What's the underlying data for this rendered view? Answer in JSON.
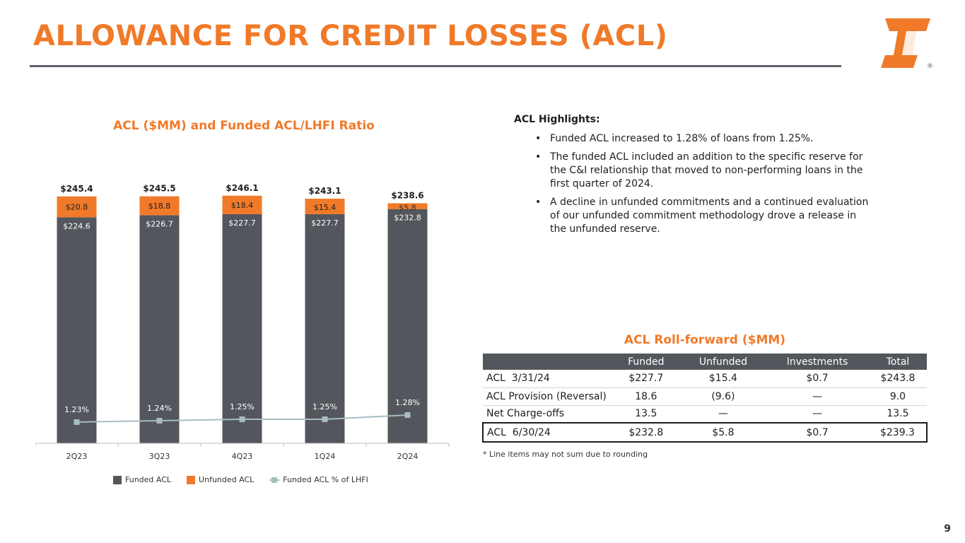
{
  "page": {
    "title": "ALLOWANCE FOR CREDIT LOSSES (ACL)",
    "page_number": "9",
    "logo_registered_mark": "®"
  },
  "colors": {
    "accent_orange": "#f07a29",
    "funded_bar": "#54565d",
    "unfunded_bar": "#f07a29",
    "ratio_line": "#a8bcc2"
  },
  "chart_data": {
    "type": "bar",
    "stacked": true,
    "title": "ACL ($MM) and Funded ACL/LHFI Ratio",
    "categories": [
      "2Q23",
      "3Q23",
      "4Q23",
      "1Q24",
      "2Q24"
    ],
    "series": [
      {
        "name": "Funded ACL",
        "values": [
          224.6,
          226.7,
          227.7,
          227.7,
          232.8
        ],
        "labels": [
          "$224.6",
          "$226.7",
          "$227.7",
          "$227.7",
          "$232.8"
        ]
      },
      {
        "name": "Unfunded ACL",
        "values": [
          20.8,
          18.8,
          18.4,
          15.4,
          5.8
        ],
        "labels": [
          "$20.8",
          "$18.8",
          "$18.4",
          "$15.4",
          "$5.8"
        ]
      },
      {
        "name": "Funded ACL % of LHFI",
        "type": "line",
        "axis": "secondary",
        "values": [
          1.23,
          1.24,
          1.25,
          1.25,
          1.28
        ],
        "labels": [
          "1.23%",
          "1.24%",
          "1.25%",
          "1.25%",
          "1.28%"
        ]
      }
    ],
    "totals": [
      245.4,
      245.5,
      246.1,
      243.1,
      238.6
    ],
    "total_labels": [
      "$245.4",
      "$245.5",
      "$246.1",
      "$243.1",
      "$238.6"
    ],
    "ylim": [
      0,
      260
    ],
    "ratio_ylim": [
      0.5,
      2.0
    ],
    "grid": false,
    "legend_position": "bottom"
  },
  "highlights": {
    "heading": "ACL Highlights:",
    "items": [
      "Funded ACL increased to 1.28% of loans from 1.25%.",
      "The funded ACL included an addition to the specific reserve for the C&I relationship that moved to non-performing loans in the first quarter of 2024.",
      "A decline in unfunded commitments and a continued evaluation of our unfunded commitment methodology drove a release in the unfunded reserve."
    ]
  },
  "rollforward": {
    "title": "ACL Roll-forward ($MM)",
    "columns": [
      "",
      "Funded",
      "Unfunded",
      "Investments",
      "Total"
    ],
    "rows": [
      [
        "ACL  3/31/24",
        "$227.7",
        "$15.4",
        "$0.7",
        "$243.8"
      ],
      [
        "ACL Provision (Reversal)",
        "18.6",
        "(9.6)",
        "—",
        "9.0"
      ],
      [
        "Net Charge-offs",
        "13.5",
        "—",
        "—",
        "13.5"
      ],
      [
        "ACL  6/30/24",
        "$232.8",
        "$5.8",
        "$0.7",
        "$239.3"
      ]
    ],
    "footnote": "* Line items may not sum due to rounding"
  }
}
